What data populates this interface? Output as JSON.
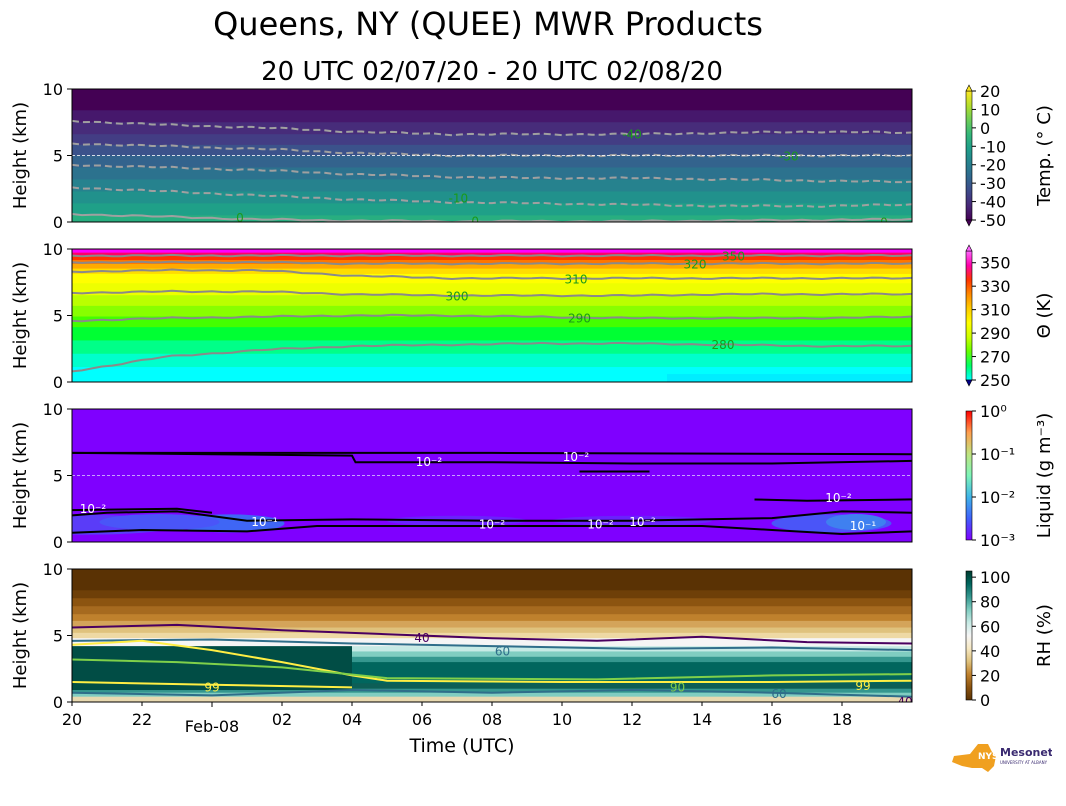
{
  "title": "Queens, NY (QUEE) MWR Products",
  "subtitle": "20 UTC 02/07/20 - 20 UTC 02/08/20",
  "x_axis": {
    "label": "Time (UTC)",
    "ticks": [
      {
        "t": 0,
        "label": "20"
      },
      {
        "t": 2,
        "label": "22"
      },
      {
        "t": 4,
        "label": "Feb-08",
        "major": true
      },
      {
        "t": 6,
        "label": "02"
      },
      {
        "t": 8,
        "label": "04"
      },
      {
        "t": 10,
        "label": "06"
      },
      {
        "t": 12,
        "label": "08"
      },
      {
        "t": 14,
        "label": "10"
      },
      {
        "t": 16,
        "label": "12"
      },
      {
        "t": 18,
        "label": "14"
      },
      {
        "t": 20,
        "label": "16"
      },
      {
        "t": 22,
        "label": "18"
      }
    ],
    "range_hours": [
      0,
      24
    ]
  },
  "logo": {
    "text1": "NYS",
    "text2": "Mesonet",
    "text3": "UNIVERSITY AT ALBANY"
  },
  "chart_data": [
    {
      "type": "heatmap",
      "variable": "temperature",
      "ylabel": "Height (km)",
      "yticks": [
        "0",
        "5",
        "10"
      ],
      "ylim": [
        0,
        10
      ],
      "colorbar_label": "Temp. (° C)",
      "colorbar_ticks": [
        "20",
        "10",
        "0",
        "-10",
        "-20",
        "-30",
        "-40",
        "-50"
      ],
      "colorbar_range": [
        -50,
        20
      ],
      "colors": [
        "#440154",
        "#482878",
        "#3e4989",
        "#31688e",
        "#26828e",
        "#1f9e89",
        "#35b779",
        "#6ece58",
        "#b5de2b",
        "#fde725"
      ],
      "contours": [
        {
          "label": "-40",
          "height_km": [
            7.6,
            7.3,
            7.1,
            6.8,
            6.6,
            6.6,
            6.6,
            6.7,
            6.8,
            6.7
          ]
        },
        {
          "label": "-30",
          "height_km": [
            5.9,
            5.7,
            5.5,
            5.2,
            5.0,
            5.0,
            5.0,
            5.0,
            5.0,
            5.0
          ]
        },
        {
          "label": "-20",
          "height_km": [
            4.3,
            4.1,
            3.9,
            3.6,
            3.4,
            3.3,
            3.3,
            3.2,
            3.1,
            3.0
          ]
        },
        {
          "label": "-10",
          "height_km": [
            2.6,
            2.3,
            2.0,
            1.7,
            1.5,
            1.4,
            1.3,
            1.2,
            1.2,
            1.3
          ]
        },
        {
          "label": "0",
          "height_km": [
            0.6,
            0.4,
            0.2,
            0.1,
            0.05,
            0.05,
            0.05,
            0.1,
            0.15,
            0.2
          ]
        }
      ]
    },
    {
      "type": "heatmap",
      "variable": "potential_temperature",
      "ylabel": "Height (km)",
      "yticks": [
        "0",
        "5",
        "10"
      ],
      "ylim": [
        0,
        10
      ],
      "colorbar_label": "Θ (K)",
      "colorbar_ticks": [
        "350",
        "330",
        "310",
        "290",
        "270",
        "250"
      ],
      "colorbar_range": [
        250,
        360
      ],
      "colors": [
        "#00ffff",
        "#00ff66",
        "#66ff00",
        "#ccff00",
        "#ffff00",
        "#ffcc00",
        "#ff8800",
        "#ff3300",
        "#ff00aa",
        "#ff66ff"
      ],
      "contours": [
        {
          "label": "280",
          "height_km": [
            0.8,
            1.9,
            2.4,
            2.7,
            2.8,
            2.9,
            2.9,
            2.8,
            2.7,
            2.7
          ]
        },
        {
          "label": "290",
          "height_km": [
            4.6,
            4.8,
            4.9,
            5.0,
            5.0,
            4.9,
            4.8,
            4.8,
            4.8,
            4.9
          ]
        },
        {
          "label": "300",
          "height_km": [
            6.7,
            6.8,
            6.8,
            6.6,
            6.5,
            6.5,
            6.5,
            6.6,
            6.6,
            6.6
          ]
        },
        {
          "label": "310",
          "height_km": [
            8.3,
            8.4,
            8.4,
            8.0,
            7.8,
            7.8,
            7.8,
            7.8,
            7.8,
            7.8
          ]
        },
        {
          "label": "320",
          "height_km": [
            9.0,
            9.0,
            9.0,
            8.9,
            8.9,
            8.9,
            8.9,
            8.9,
            8.9,
            8.9
          ]
        },
        {
          "label": "350",
          "height_km": [
            9.5,
            9.5,
            9.5,
            9.5,
            9.5,
            9.5,
            9.5,
            9.5,
            9.5,
            9.5
          ]
        }
      ]
    },
    {
      "type": "heatmap",
      "variable": "liquid_water",
      "ylabel": "Height (km)",
      "yticks": [
        "0",
        "5",
        "10"
      ],
      "ylim": [
        0,
        10
      ],
      "colorbar_label": "Liquid (g m⁻³)",
      "colorbar_ticks": [
        "10⁰",
        "10⁻¹",
        "10⁻²",
        "10⁻³"
      ],
      "colorbar_range": [
        0.001,
        1
      ],
      "log_scale": true,
      "colors": [
        "#7f00ff",
        "#4060fb",
        "#3fb4e8",
        "#7ef5b9",
        "#c0e480",
        "#ff9f4f",
        "#ff0000"
      ],
      "contour_labels": [
        "10⁻²",
        "10⁻¹"
      ]
    },
    {
      "type": "heatmap",
      "variable": "relative_humidity",
      "ylabel": "Height (km)",
      "yticks": [
        "0",
        "5",
        "10"
      ],
      "ylim": [
        0,
        10
      ],
      "colorbar_label": "RH (%)",
      "colorbar_ticks": [
        "100",
        "80",
        "60",
        "40",
        "20",
        "0"
      ],
      "colorbar_range": [
        0,
        105
      ],
      "colors": [
        "#5a3204",
        "#8c5410",
        "#bf812d",
        "#dfc27d",
        "#f6e8c3",
        "#f5f5f5",
        "#c7eae5",
        "#80cdc1",
        "#35978f",
        "#01665e",
        "#003c30"
      ],
      "contour_labels": [
        "40",
        "60",
        "90",
        "99"
      ]
    }
  ]
}
